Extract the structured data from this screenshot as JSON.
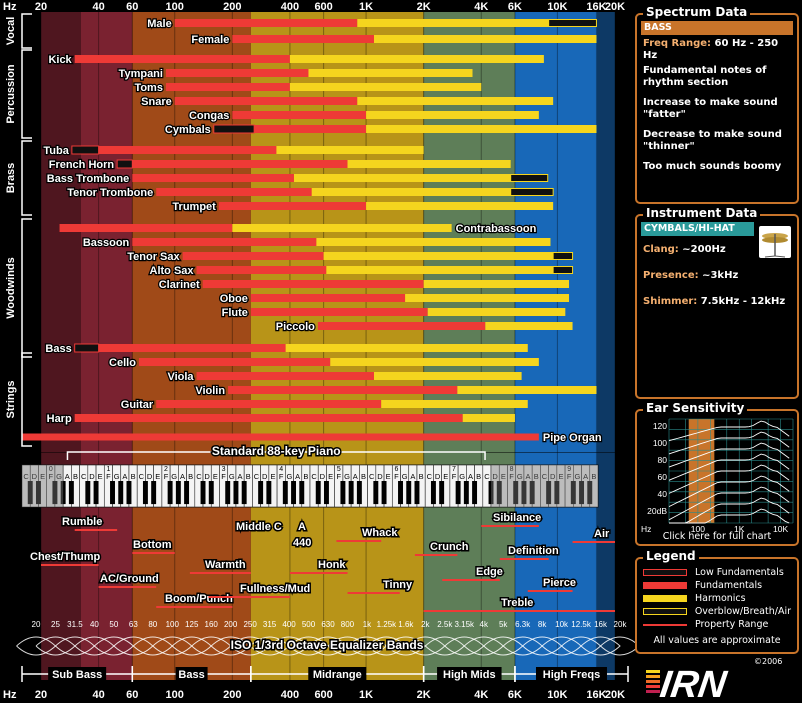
{
  "chart_data": {
    "type": "range_bar",
    "x_scale": "log",
    "x_range_hz": [
      20,
      20000
    ],
    "freq_ticks": [
      {
        "hz": 20,
        "label": "20"
      },
      {
        "hz": 40,
        "label": "40"
      },
      {
        "hz": 60,
        "label": "60"
      },
      {
        "hz": 100,
        "label": "100"
      },
      {
        "hz": 200,
        "label": "200"
      },
      {
        "hz": 400,
        "label": "400"
      },
      {
        "hz": 600,
        "label": "600"
      },
      {
        "hz": 1000,
        "label": "1K"
      },
      {
        "hz": 2000,
        "label": "2K"
      },
      {
        "hz": 4000,
        "label": "4K"
      },
      {
        "hz": 6000,
        "label": "6K"
      },
      {
        "hz": 10000,
        "label": "10K"
      },
      {
        "hz": 16000,
        "label": "16K"
      },
      {
        "hz": 20000,
        "label": "20K"
      }
    ],
    "hz_label": "Hz",
    "bands": [
      {
        "name": "Sub Bass",
        "range_hz": [
          20,
          60
        ],
        "color": "#7a2230"
      },
      {
        "name": "Bass",
        "range_hz": [
          60,
          250
        ],
        "color": "#a04a18"
      },
      {
        "name": "Midrange",
        "range_hz": [
          250,
          2000
        ],
        "color": "#b89418"
      },
      {
        "name": "High Mids",
        "range_hz": [
          2000,
          6000
        ],
        "color": "#5e7e58"
      },
      {
        "name": "High Freqs",
        "range_hz": [
          6000,
          20000
        ],
        "color": "#1868b8"
      }
    ],
    "groups": [
      {
        "name": "Vocal",
        "first": 0,
        "last": 1
      },
      {
        "name": "Percussion",
        "first": 2,
        "last": 7
      },
      {
        "name": "Brass",
        "first": 8,
        "last": 12
      },
      {
        "name": "Woodwinds",
        "first": 13,
        "last": 21
      },
      {
        "name": "Strings",
        "first": 22,
        "last": 27
      }
    ],
    "series_legend": [
      "Low Fundamentals",
      "Fundamentals",
      "Harmonics",
      "Overblow/Breath/Air",
      "Property Range"
    ],
    "instruments": [
      {
        "name": "Male",
        "fund": [
          100,
          900
        ],
        "harm": [
          900,
          9000
        ],
        "air": [
          9000,
          16000
        ]
      },
      {
        "name": "Female",
        "fund": [
          200,
          1100
        ],
        "harm": [
          1100,
          16000
        ],
        "air": null
      },
      {
        "name": "Kick",
        "fund": [
          30,
          400
        ],
        "harm": [
          400,
          8500
        ],
        "air": null
      },
      {
        "name": "Tympani",
        "fund": [
          90,
          500
        ],
        "harm": [
          500,
          3600
        ],
        "air": null
      },
      {
        "name": "Toms",
        "fund": [
          90,
          400
        ],
        "harm": [
          400,
          4000
        ],
        "air": null
      },
      {
        "name": "Snare",
        "fund": [
          100,
          900
        ],
        "harm": [
          900,
          9500
        ],
        "air": null
      },
      {
        "name": "Congas",
        "fund": [
          200,
          1000
        ],
        "harm": [
          1000,
          8000
        ],
        "air": null
      },
      {
        "name": "Cymbals",
        "fund": [
          260,
          1000
        ],
        "harm": [
          1000,
          16000
        ],
        "air": null,
        "low": [
          160,
          260
        ]
      },
      {
        "name": "Tuba",
        "fund": [
          40,
          340
        ],
        "harm": [
          340,
          2000
        ],
        "air": null,
        "low": [
          29,
          40
        ]
      },
      {
        "name": "French Horn",
        "fund": [
          60,
          800
        ],
        "harm": [
          800,
          5700
        ],
        "air": null,
        "low": [
          50,
          60
        ]
      },
      {
        "name": "Bass Trombone",
        "fund": [
          60,
          420
        ],
        "harm": [
          420,
          5700
        ],
        "air": [
          5700,
          8900
        ]
      },
      {
        "name": "Tenor Trombone",
        "fund": [
          80,
          520
        ],
        "harm": [
          520,
          5700
        ],
        "air": [
          5700,
          9500
        ]
      },
      {
        "name": "Trumpet",
        "fund": [
          170,
          1000
        ],
        "harm": [
          1000,
          9500
        ],
        "air": null
      },
      {
        "name": "Contrabassoon",
        "fund": [
          25,
          200
        ],
        "harm": [
          200,
          2800
        ],
        "air": null
      },
      {
        "name": "Bassoon",
        "fund": [
          60,
          550
        ],
        "harm": [
          550,
          9200
        ],
        "air": null
      },
      {
        "name": "Tenor Sax",
        "fund": [
          110,
          600
        ],
        "harm": [
          600,
          9500
        ],
        "air": [
          9500,
          12000
        ]
      },
      {
        "name": "Alto Sax",
        "fund": [
          130,
          620
        ],
        "harm": [
          620,
          9500
        ],
        "air": [
          9500,
          12000
        ]
      },
      {
        "name": "Clarinet",
        "fund": [
          140,
          2000
        ],
        "harm": [
          2000,
          11500
        ],
        "air": null
      },
      {
        "name": "Oboe",
        "fund": [
          250,
          1600
        ],
        "harm": [
          1600,
          11500
        ],
        "air": null
      },
      {
        "name": "Flute",
        "fund": [
          250,
          2100
        ],
        "harm": [
          2100,
          11000
        ],
        "air": null
      },
      {
        "name": "Piccolo",
        "fund": [
          560,
          4200
        ],
        "harm": [
          4200,
          12000
        ],
        "air": null
      },
      {
        "name": "Bass",
        "fund": [
          40,
          380
        ],
        "harm": [
          380,
          7000
        ],
        "air": null,
        "low": [
          30,
          40
        ]
      },
      {
        "name": "Cello",
        "fund": [
          65,
          650
        ],
        "harm": [
          650,
          8000
        ],
        "air": null
      },
      {
        "name": "Viola",
        "fund": [
          130,
          1100
        ],
        "harm": [
          1100,
          6500
        ],
        "air": null
      },
      {
        "name": "Violin",
        "fund": [
          190,
          3000
        ],
        "harm": [
          3000,
          16000
        ],
        "air": null
      },
      {
        "name": "Guitar",
        "fund": [
          80,
          1200
        ],
        "harm": [
          1200,
          7000
        ],
        "air": null
      },
      {
        "name": "Harp",
        "fund": [
          30,
          3200
        ],
        "harm": [
          3200,
          6000
        ],
        "air": null
      },
      {
        "name": "Pipe Organ",
        "fund": [
          16,
          8000
        ],
        "harm": null,
        "air": null
      }
    ],
    "piano": {
      "label": "Standard 88-key Piano",
      "range_hz": [
        27.5,
        4186
      ],
      "keys_range_hz": [
        20,
        16000
      ],
      "octave_labels": [
        "0",
        "1",
        "2",
        "3",
        "4",
        "5",
        "6",
        "7",
        "8",
        "9"
      ],
      "note_letters": [
        "C",
        "D",
        "E",
        "F",
        "G",
        "A",
        "B"
      ]
    },
    "properties": [
      {
        "name": "Rumble",
        "range_hz": [
          30,
          50
        ]
      },
      {
        "name": "Chest/Thump",
        "range_hz": [
          20,
          40
        ]
      },
      {
        "name": "Bottom",
        "range_hz": [
          60,
          100
        ]
      },
      {
        "name": "AC/Ground",
        "range_hz": [
          40,
          80
        ]
      },
      {
        "name": "Warmth",
        "range_hz": [
          120,
          250
        ]
      },
      {
        "name": "Boom/Punch",
        "range_hz": [
          80,
          200
        ]
      },
      {
        "name": "Fullness/Mud",
        "range_hz": [
          150,
          400
        ]
      },
      {
        "name": "Middle C",
        "range_hz": [
          262,
          262
        ]
      },
      {
        "name": "A",
        "range_hz": [
          440,
          440
        ]
      },
      {
        "name": "440",
        "range_hz": [
          440,
          440
        ]
      },
      {
        "name": "Honk",
        "range_hz": [
          400,
          800
        ]
      },
      {
        "name": "Whack",
        "range_hz": [
          700,
          1200
        ]
      },
      {
        "name": "Tinny",
        "range_hz": [
          800,
          1500
        ]
      },
      {
        "name": "Crunch",
        "range_hz": [
          1800,
          3000
        ]
      },
      {
        "name": "Edge",
        "range_hz": [
          2500,
          5000
        ]
      },
      {
        "name": "Sibilance",
        "range_hz": [
          4000,
          8000
        ]
      },
      {
        "name": "Definition",
        "range_hz": [
          5000,
          9000
        ]
      },
      {
        "name": "Pierce",
        "range_hz": [
          7000,
          12000
        ]
      },
      {
        "name": "Air",
        "range_hz": [
          12000,
          20000
        ]
      },
      {
        "name": "Treble",
        "range_hz": [
          2000,
          20000
        ]
      }
    ],
    "eq_title": "ISO 1/3rd Octave Equalizer Bands",
    "eq_bands": [
      {
        "hz": 20,
        "label": "20"
      },
      {
        "hz": 25,
        "label": "25"
      },
      {
        "hz": 31.5,
        "label": "31.5"
      },
      {
        "hz": 40,
        "label": "40"
      },
      {
        "hz": 50,
        "label": "50"
      },
      {
        "hz": 63,
        "label": "63"
      },
      {
        "hz": 80,
        "label": "80"
      },
      {
        "hz": 100,
        "label": "100"
      },
      {
        "hz": 125,
        "label": "125"
      },
      {
        "hz": 160,
        "label": "160"
      },
      {
        "hz": 200,
        "label": "200"
      },
      {
        "hz": 250,
        "label": "250"
      },
      {
        "hz": 315,
        "label": "315"
      },
      {
        "hz": 400,
        "label": "400"
      },
      {
        "hz": 500,
        "label": "500"
      },
      {
        "hz": 630,
        "label": "630"
      },
      {
        "hz": 800,
        "label": "800"
      },
      {
        "hz": 1000,
        "label": "1k"
      },
      {
        "hz": 1250,
        "label": "1.25k"
      },
      {
        "hz": 1600,
        "label": "1.6k"
      },
      {
        "hz": 2000,
        "label": "2k"
      },
      {
        "hz": 2500,
        "label": "2.5k"
      },
      {
        "hz": 3150,
        "label": "3.15k"
      },
      {
        "hz": 4000,
        "label": "4k"
      },
      {
        "hz": 5000,
        "label": "5k"
      },
      {
        "hz": 6300,
        "label": "6.3k"
      },
      {
        "hz": 8000,
        "label": "8k"
      },
      {
        "hz": 10000,
        "label": "10k"
      },
      {
        "hz": 12500,
        "label": "12.5k"
      },
      {
        "hz": 16000,
        "label": "16k"
      },
      {
        "hz": 20000,
        "label": "20k"
      }
    ]
  },
  "spectrum_panel": {
    "title": "Spectrum Data",
    "selected": "BASS",
    "freq_key": "Freq Range:",
    "freq_val": "60 Hz - 250 Hz",
    "lines": [
      "Fundamental notes of rhythm section",
      "Increase to make sound \"fatter\"",
      "Decrease to make sound \"thinner\"",
      "Too much sounds boomy"
    ]
  },
  "instrument_panel": {
    "title": "Instrument Data",
    "selected": "CYMBALS/HI-HAT",
    "rows": [
      {
        "k": "Clang:",
        "v": "~200Hz"
      },
      {
        "k": "Presence:",
        "v": "~3kHz"
      },
      {
        "k": "Shimmer:",
        "v": "7.5kHz - 12kHz"
      }
    ]
  },
  "ear_panel": {
    "title": "Ear Sensitivity",
    "y_labels": [
      "120",
      "100",
      "80",
      "60",
      "40",
      "20dB"
    ],
    "x_unit": "Hz",
    "x_labels": [
      "100",
      "1K",
      "10K"
    ],
    "link": "Click here for full chart"
  },
  "legend_panel": {
    "title": "Legend",
    "items": [
      "Low Fundamentals",
      "Fundamentals",
      "Harmonics",
      "Overblow/Breath/Air",
      "Property Range"
    ],
    "note": "All values are approximate"
  },
  "logo": {
    "text": "IRN",
    "copyright": "©2006"
  },
  "colors": {
    "fund": "#ee3a36",
    "harm": "#f5d51e",
    "air": "#101010",
    "low": "#101010",
    "accent": "#c8742a"
  }
}
